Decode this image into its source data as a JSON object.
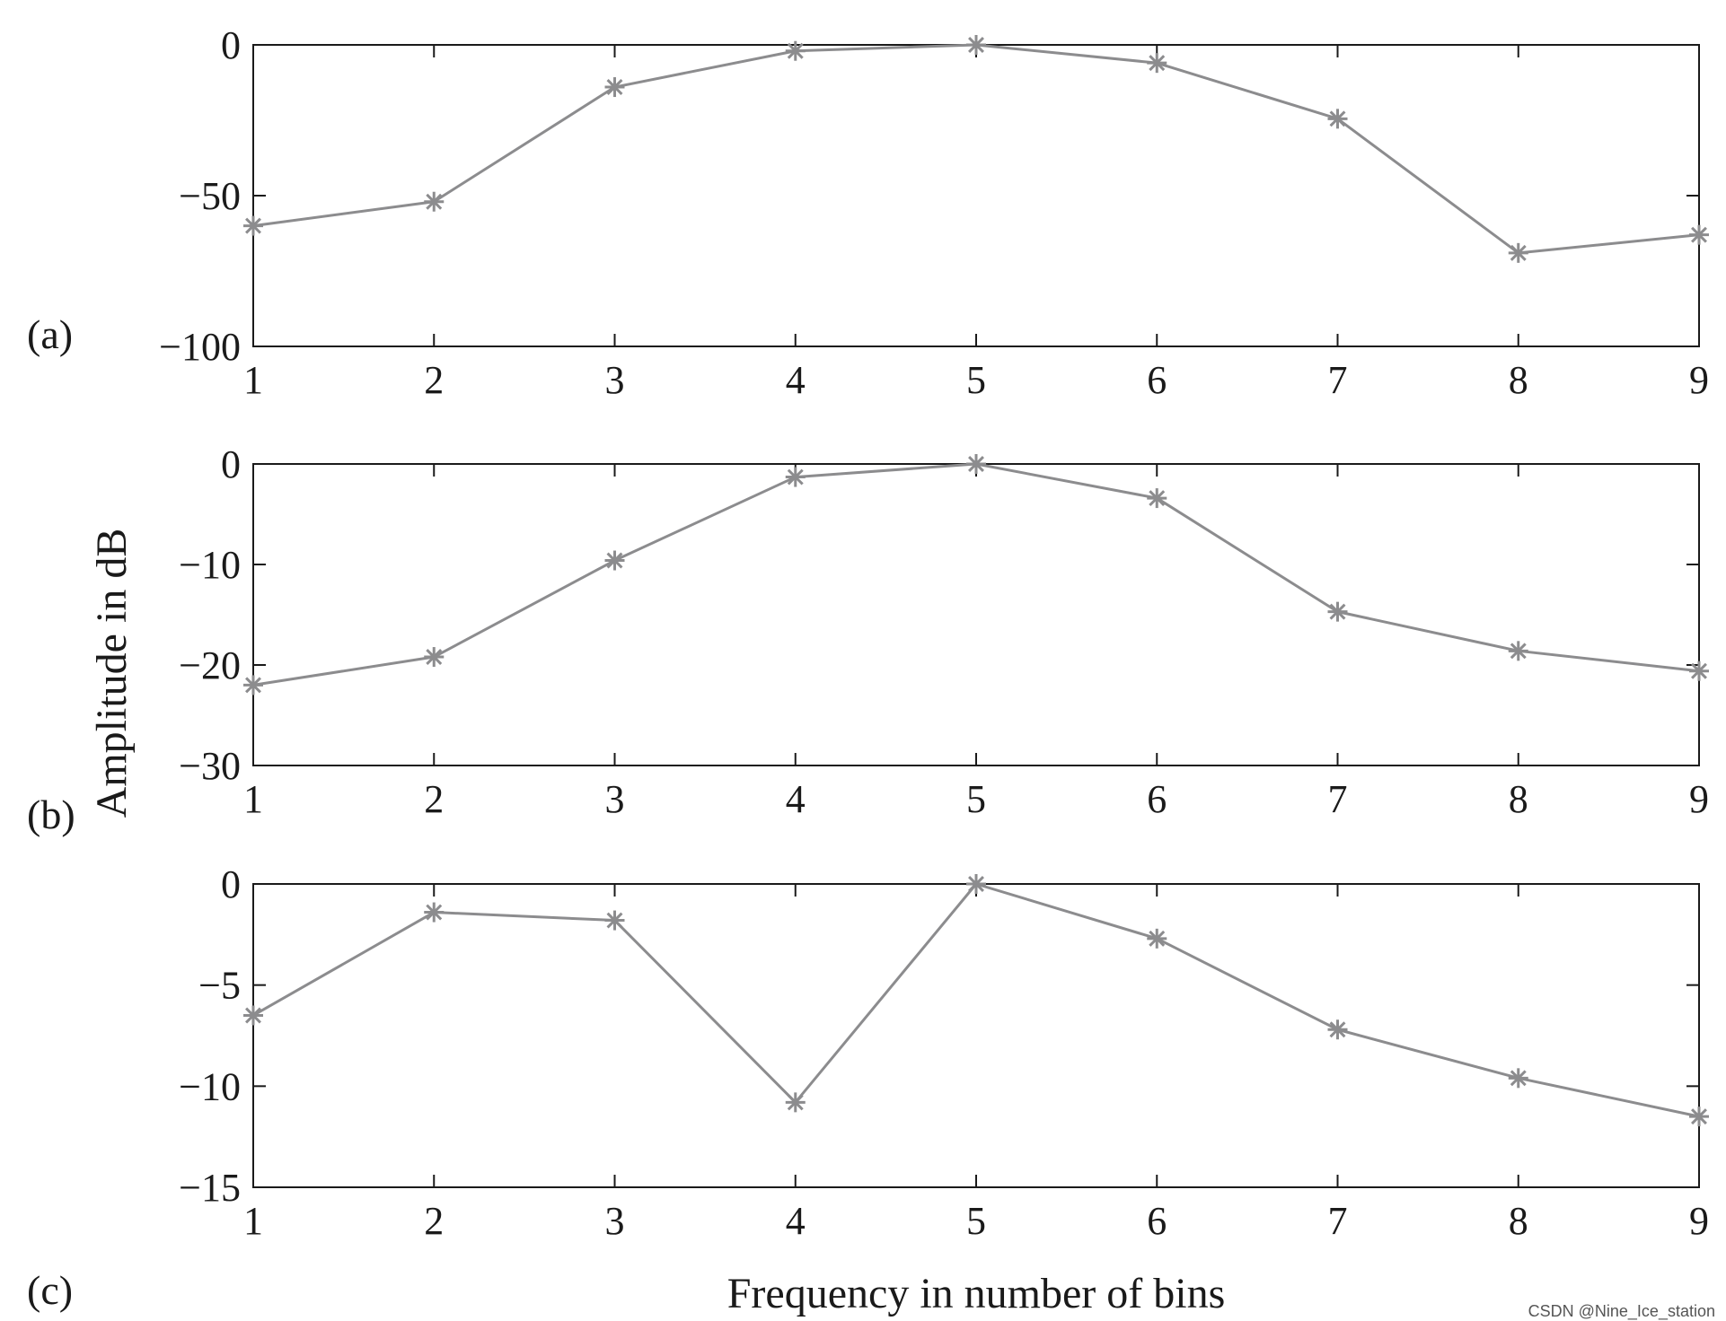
{
  "figure": {
    "ylabel": "Amplitude in dB",
    "xlabel": "Frequency in number of bins",
    "watermark": "CSDN @Nine_Ice_station",
    "line_color": "#8c8c8e",
    "axis_color": "#1a1a1a"
  },
  "chart_data": [
    {
      "type": "line",
      "panel_label": "(a)",
      "x": [
        1,
        2,
        3,
        4,
        5,
        6,
        7,
        8,
        9
      ],
      "y": [
        -60,
        -52,
        -14,
        -2,
        0,
        -6,
        -24.5,
        -69,
        -63
      ],
      "xlim": [
        1,
        9
      ],
      "ylim": [
        -100,
        0
      ],
      "xticks": [
        1,
        2,
        3,
        4,
        5,
        6,
        7,
        8,
        9
      ],
      "yticks": [
        0,
        -50,
        -100
      ],
      "ytick_labels": [
        "0",
        "−50",
        "−100"
      ],
      "marker": "asterisk"
    },
    {
      "type": "line",
      "panel_label": "(b)",
      "x": [
        1,
        2,
        3,
        4,
        5,
        6,
        7,
        8,
        9
      ],
      "y": [
        -22,
        -19.2,
        -9.6,
        -1.3,
        0,
        -3.4,
        -14.7,
        -18.6,
        -20.6
      ],
      "xlim": [
        1,
        9
      ],
      "ylim": [
        -30,
        0
      ],
      "xticks": [
        1,
        2,
        3,
        4,
        5,
        6,
        7,
        8,
        9
      ],
      "yticks": [
        0,
        -10,
        -20,
        -30
      ],
      "ytick_labels": [
        "0",
        "−10",
        "−20",
        "−30"
      ],
      "marker": "asterisk"
    },
    {
      "type": "line",
      "panel_label": "(c)",
      "x": [
        1,
        2,
        3,
        4,
        5,
        6,
        7,
        8,
        9
      ],
      "y": [
        -6.5,
        -1.4,
        -1.8,
        -10.8,
        0,
        -2.7,
        -7.2,
        -9.6,
        -11.5
      ],
      "xlim": [
        1,
        9
      ],
      "ylim": [
        -15,
        0
      ],
      "xticks": [
        1,
        2,
        3,
        4,
        5,
        6,
        7,
        8,
        9
      ],
      "yticks": [
        0,
        -5,
        -10,
        -15
      ],
      "ytick_labels": [
        "0",
        "−5",
        "−10",
        "−15"
      ],
      "marker": "asterisk"
    }
  ]
}
